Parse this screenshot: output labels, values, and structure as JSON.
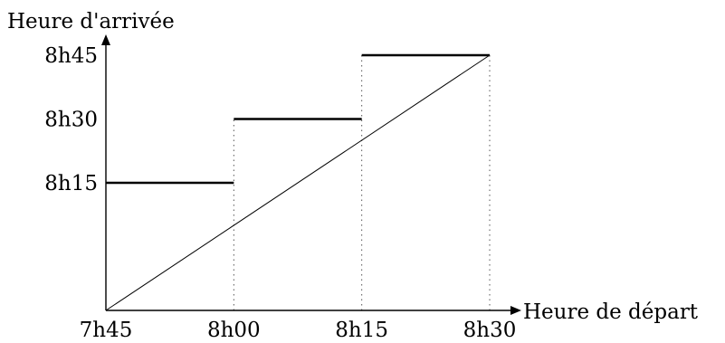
{
  "chart_data": {
    "type": "line",
    "title": "",
    "xlabel": "Heure de départ",
    "ylabel": "Heure d'arrivée",
    "x_ticks": [
      "7h45",
      "8h00",
      "8h15",
      "8h30"
    ],
    "y_ticks": [
      "8h15",
      "8h30",
      "8h45"
    ],
    "xlim": [
      "7h45",
      "8h30"
    ],
    "ylim": [
      "7h45",
      "8h45"
    ],
    "grid": false,
    "series": [
      {
        "kind": "step",
        "segments": [
          {
            "x_start": "7h45",
            "x_end": "8h00",
            "y": "8h15"
          },
          {
            "x_start": "8h00",
            "x_end": "8h15",
            "y": "8h30"
          },
          {
            "x_start": "8h15",
            "x_end": "8h30",
            "y": "8h45"
          }
        ]
      },
      {
        "kind": "line",
        "points": [
          {
            "x": "7h45",
            "y": "7h45"
          },
          {
            "x": "8h30",
            "y": "8h45"
          }
        ]
      }
    ],
    "guides": [
      {
        "x": "8h00",
        "y_from": "7h45",
        "y_to": "8h30"
      },
      {
        "x": "8h15",
        "y_from": "7h45",
        "y_to": "8h45"
      },
      {
        "x": "8h30",
        "y_from": "7h45",
        "y_to": "8h45"
      }
    ],
    "colors": {
      "ink": "#000000",
      "guide": "#555555"
    }
  }
}
